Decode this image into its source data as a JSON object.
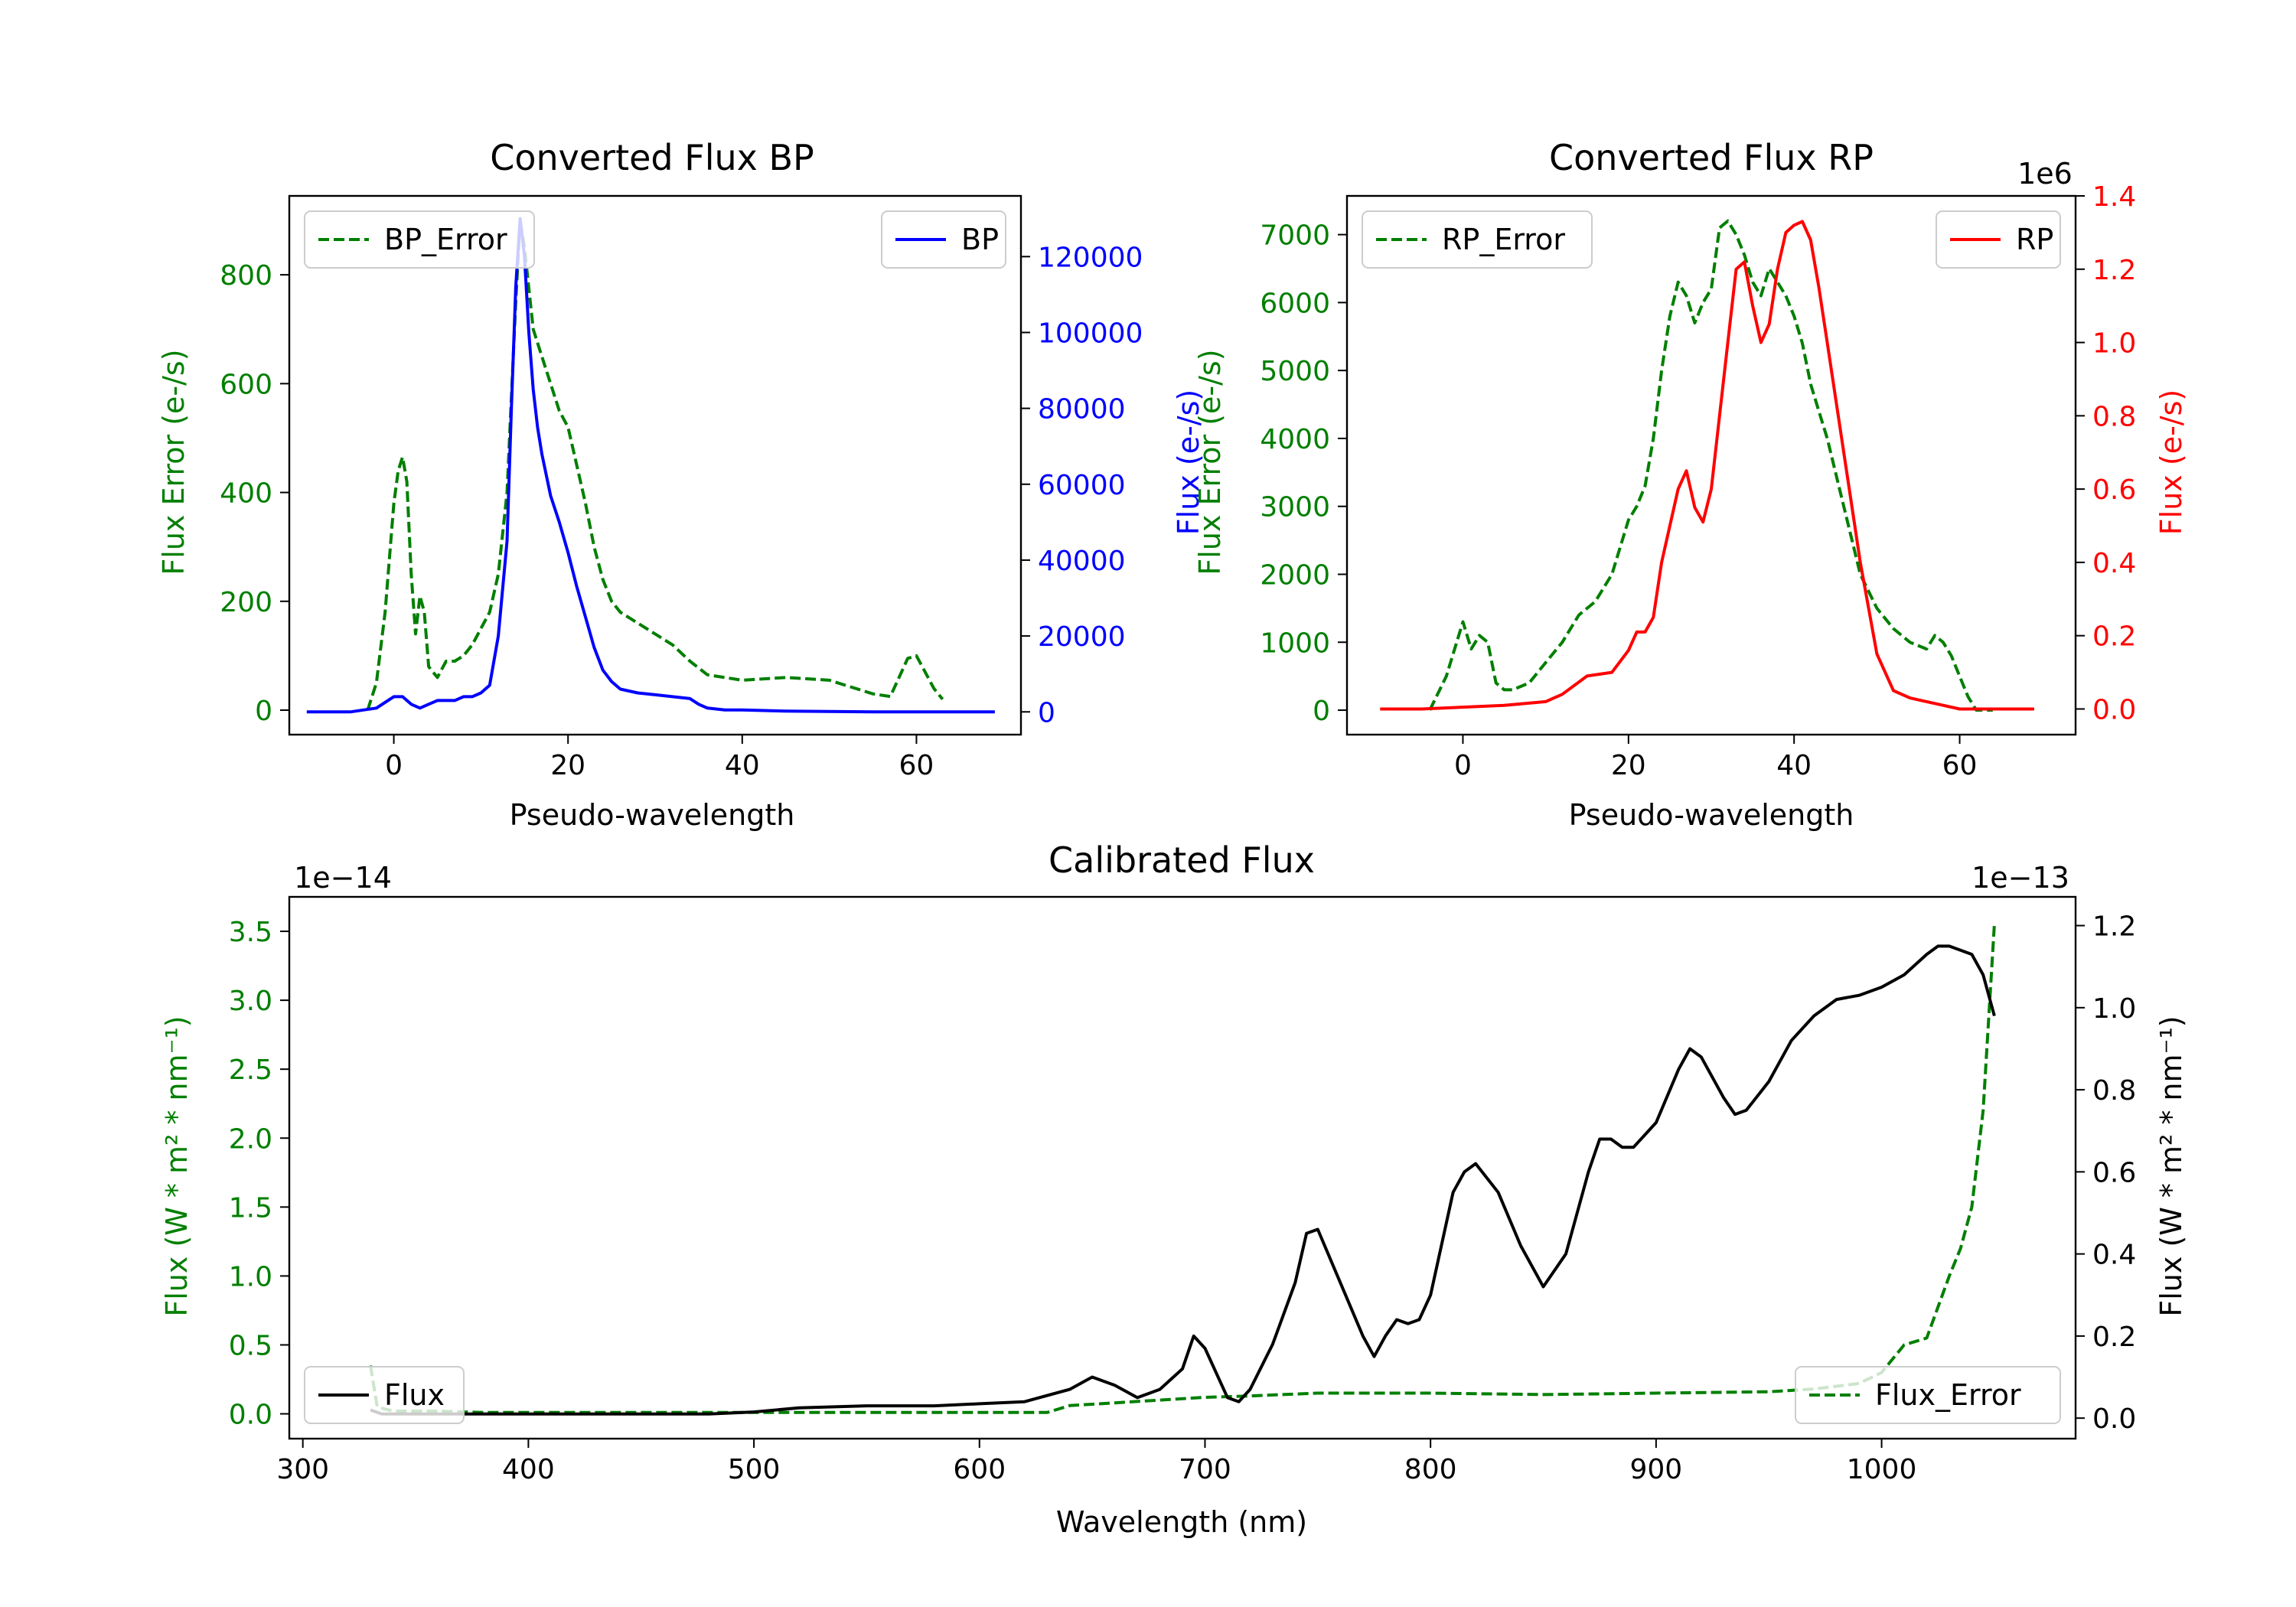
{
  "colors": {
    "green": "#007f00",
    "blue": "#0000ff",
    "red": "#ff0000",
    "black": "#000000"
  },
  "chart_data": [
    {
      "id": "bp",
      "type": "line",
      "title": "Converted Flux BP",
      "xlabel": "Pseudo-wavelength",
      "ylabel_left": "Flux Error (e-/s)",
      "ylabel_right": "Flux (e-/s)",
      "xlim": [
        -12,
        72
      ],
      "ylim_left": [
        -45,
        945
      ],
      "ylim_right": [
        -6000,
        136000
      ],
      "xticks": [
        0,
        20,
        40,
        60
      ],
      "yticks_left": [
        0,
        200,
        400,
        600,
        800
      ],
      "yticks_right": [
        0,
        20000,
        40000,
        60000,
        80000,
        100000,
        120000
      ],
      "series": [
        {
          "name": "BP_Error",
          "axis": "left",
          "style": "dashed",
          "color": "#007f00",
          "x": [
            -3,
            -2,
            -1,
            0,
            0.5,
            1,
            1.5,
            2,
            2.5,
            3,
            3.5,
            4,
            5,
            6,
            7,
            8,
            9,
            10,
            11,
            12,
            13,
            14,
            14.5,
            15,
            16,
            17,
            18,
            19,
            20,
            21,
            22,
            23,
            24,
            25,
            26,
            28,
            30,
            32,
            34,
            36,
            38,
            40,
            45,
            50,
            55,
            57,
            58,
            59,
            60,
            61,
            62,
            63
          ],
          "y": [
            0,
            50,
            180,
            380,
            440,
            465,
            420,
            250,
            140,
            210,
            180,
            80,
            60,
            90,
            90,
            100,
            120,
            150,
            180,
            250,
            400,
            750,
            900,
            850,
            700,
            650,
            600,
            550,
            520,
            450,
            380,
            300,
            240,
            200,
            180,
            160,
            140,
            120,
            90,
            65,
            60,
            55,
            60,
            55,
            30,
            25,
            60,
            95,
            100,
            70,
            40,
            20
          ]
        },
        {
          "name": "BP",
          "axis": "right",
          "color": "#0000ff",
          "x": [
            -10,
            -5,
            -2,
            0,
            1,
            2,
            3,
            4,
            5,
            6,
            7,
            8,
            9,
            10,
            11,
            12,
            13,
            13.5,
            14,
            14.5,
            15,
            15.5,
            16,
            16.5,
            17,
            18,
            19,
            20,
            21,
            22,
            23,
            24,
            25,
            26,
            27,
            28,
            30,
            32,
            34,
            35,
            36,
            38,
            40,
            45,
            50,
            55,
            60,
            65,
            69
          ],
          "y": [
            0,
            0,
            1000,
            4000,
            4000,
            2000,
            1000,
            2000,
            3000,
            3000,
            3000,
            4000,
            4000,
            5000,
            7000,
            20000,
            45000,
            80000,
            112000,
            130000,
            120000,
            100000,
            85000,
            75000,
            68000,
            57000,
            50000,
            42000,
            33000,
            25000,
            17000,
            11000,
            8000,
            6000,
            5500,
            5000,
            4500,
            4000,
            3500,
            2000,
            1000,
            500,
            500,
            200,
            100,
            0,
            0,
            0,
            0
          ]
        }
      ],
      "legend": [
        {
          "label": "BP_Error",
          "position": "upper-left"
        },
        {
          "label": "BP",
          "position": "upper-right"
        }
      ]
    },
    {
      "id": "rp",
      "type": "line",
      "title": "Converted Flux RP",
      "xlabel": "Pseudo-wavelength",
      "ylabel_left": "Flux Error (e-/s)",
      "ylabel_right": "Flux (e-/s)",
      "right_offset_label": "1e6",
      "xlim": [
        -14,
        74
      ],
      "ylim_left": [
        -360,
        7570
      ],
      "ylim_right": [
        -0.07,
        1.4
      ],
      "xticks": [
        0,
        20,
        40,
        60
      ],
      "yticks_left": [
        0,
        1000,
        2000,
        3000,
        4000,
        5000,
        6000,
        7000
      ],
      "yticks_right": [
        0.0,
        0.2,
        0.4,
        0.6,
        0.8,
        1.0,
        1.2,
        1.4
      ],
      "series": [
        {
          "name": "RP_Error",
          "axis": "left",
          "style": "dashed",
          "color": "#007f00",
          "x": [
            -4,
            -2,
            0,
            1,
            2,
            3,
            4,
            5,
            6,
            8,
            10,
            12,
            14,
            16,
            18,
            20,
            21,
            22,
            23,
            24,
            25,
            26,
            27,
            28,
            29,
            30,
            31,
            32,
            33,
            34,
            35,
            36,
            37,
            38,
            39,
            40,
            41,
            42,
            43,
            44,
            45,
            46,
            47,
            48,
            50,
            52,
            54,
            56,
            57,
            58,
            59,
            60,
            61,
            62,
            63,
            64
          ],
          "y": [
            0,
            500,
            1300,
            900,
            1100,
            1000,
            400,
            300,
            300,
            400,
            700,
            1000,
            1400,
            1600,
            2000,
            2800,
            3000,
            3300,
            4000,
            5000,
            5800,
            6300,
            6100,
            5700,
            6000,
            6200,
            7100,
            7200,
            7000,
            6700,
            6300,
            6100,
            6500,
            6300,
            6100,
            5800,
            5400,
            4800,
            4400,
            4000,
            3500,
            3000,
            2500,
            2000,
            1500,
            1200,
            1000,
            900,
            1100,
            1000,
            800,
            500,
            200,
            0,
            0,
            0
          ]
        },
        {
          "name": "RP",
          "axis": "right",
          "color": "#ff0000",
          "x": [
            -10,
            -5,
            0,
            5,
            10,
            12,
            15,
            18,
            20,
            21,
            22,
            23,
            24,
            25,
            26,
            27,
            28,
            29,
            30,
            31,
            32,
            33,
            34,
            35,
            36,
            37,
            38,
            39,
            40,
            41,
            42,
            43,
            44,
            45,
            46,
            47,
            48,
            50,
            52,
            54,
            56,
            58,
            60,
            62,
            65,
            69
          ],
          "y": [
            0,
            0,
            0.005,
            0.01,
            0.02,
            0.04,
            0.09,
            0.1,
            0.16,
            0.21,
            0.21,
            0.25,
            0.4,
            0.5,
            0.6,
            0.65,
            0.55,
            0.51,
            0.6,
            0.8,
            1.0,
            1.2,
            1.22,
            1.1,
            1.0,
            1.05,
            1.2,
            1.3,
            1.32,
            1.33,
            1.28,
            1.15,
            1.0,
            0.85,
            0.7,
            0.55,
            0.4,
            0.15,
            0.05,
            0.03,
            0.02,
            0.01,
            0,
            0,
            0,
            0
          ]
        }
      ],
      "legend": [
        {
          "label": "RP_Error",
          "position": "upper-left"
        },
        {
          "label": "RP",
          "position": "upper-right"
        }
      ]
    },
    {
      "id": "cal",
      "type": "line",
      "title": "Calibrated Flux",
      "xlabel": "Wavelength (nm)",
      "ylabel_left": "Flux (W * m² * nm⁻¹)",
      "ylabel_right": "Flux (W * m² * nm⁻¹)",
      "left_offset_label": "1e−14",
      "right_offset_label": "1e−13",
      "xlim": [
        294,
        1086
      ],
      "ylim_left": [
        -0.18,
        3.75
      ],
      "ylim_right": [
        -0.05,
        1.27
      ],
      "xticks": [
        300,
        400,
        500,
        600,
        700,
        800,
        900,
        1000
      ],
      "yticks_left": [
        0.0,
        0.5,
        1.0,
        1.5,
        2.0,
        2.5,
        3.0,
        3.5
      ],
      "yticks_right": [
        0.0,
        0.2,
        0.4,
        0.6,
        0.8,
        1.0,
        1.2
      ],
      "series": [
        {
          "name": "Flux_Error",
          "axis": "left",
          "style": "dashed",
          "color": "#007f00",
          "x": [
            330,
            333,
            340,
            360,
            380,
            400,
            500,
            600,
            630,
            640,
            660,
            680,
            700,
            720,
            750,
            780,
            800,
            850,
            900,
            950,
            970,
            990,
            1000,
            1010,
            1020,
            1030,
            1035,
            1040,
            1045,
            1050
          ],
          "y": [
            0.35,
            0.05,
            0.02,
            0.02,
            0.01,
            0.01,
            0.01,
            0.01,
            0.01,
            0.06,
            0.08,
            0.1,
            0.12,
            0.13,
            0.15,
            0.15,
            0.15,
            0.14,
            0.15,
            0.16,
            0.18,
            0.22,
            0.3,
            0.5,
            0.55,
            1.0,
            1.2,
            1.5,
            2.2,
            3.55
          ]
        },
        {
          "name": "Flux",
          "axis": "right",
          "color": "#000000",
          "x": [
            330,
            335,
            340,
            360,
            380,
            400,
            420,
            450,
            480,
            500,
            520,
            550,
            580,
            600,
            620,
            640,
            650,
            660,
            670,
            680,
            690,
            695,
            700,
            710,
            715,
            720,
            730,
            740,
            745,
            750,
            760,
            770,
            775,
            780,
            785,
            790,
            795,
            800,
            810,
            815,
            820,
            830,
            840,
            850,
            860,
            870,
            875,
            880,
            885,
            890,
            900,
            910,
            915,
            920,
            930,
            935,
            940,
            950,
            960,
            970,
            980,
            990,
            1000,
            1010,
            1020,
            1025,
            1030,
            1035,
            1040,
            1045,
            1050
          ],
          "y": [
            0.02,
            0.01,
            0.01,
            0.01,
            0.01,
            0.01,
            0.01,
            0.01,
            0.01,
            0.015,
            0.025,
            0.03,
            0.03,
            0.035,
            0.04,
            0.07,
            0.1,
            0.08,
            0.05,
            0.07,
            0.12,
            0.2,
            0.17,
            0.05,
            0.04,
            0.07,
            0.18,
            0.33,
            0.45,
            0.46,
            0.33,
            0.2,
            0.15,
            0.2,
            0.24,
            0.23,
            0.24,
            0.3,
            0.55,
            0.6,
            0.62,
            0.55,
            0.42,
            0.32,
            0.4,
            0.6,
            0.68,
            0.68,
            0.66,
            0.66,
            0.72,
            0.85,
            0.9,
            0.88,
            0.78,
            0.74,
            0.75,
            0.82,
            0.92,
            0.98,
            1.02,
            1.03,
            1.05,
            1.08,
            1.13,
            1.15,
            1.15,
            1.14,
            1.13,
            1.08,
            0.98
          ]
        }
      ],
      "legend": [
        {
          "label": "Flux",
          "position": "lower-left"
        },
        {
          "label": "Flux_Error",
          "position": "lower-right"
        }
      ]
    }
  ]
}
